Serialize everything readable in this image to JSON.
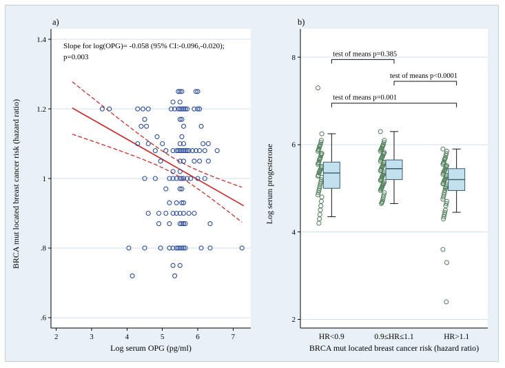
{
  "figure": {
    "background": "#e9f1f6",
    "plot_background": "#ffffff",
    "grid_color": "#cfe1ee",
    "axis_color": "#000000"
  },
  "chart_data": [
    {
      "type": "scatter",
      "panel_label": "a)",
      "annotation_line1": "Slope for log(OPG)= -0.058 (95% CI:-0.096,-0.020);",
      "annotation_line2": "p=0.003",
      "xlabel": "Log serum OPG (pg/ml)",
      "ylabel": "BRCA mut located breast cancer risk (hazard ratio)",
      "xlim": [
        1.85,
        7.5
      ],
      "ylim": [
        0.57,
        1.43
      ],
      "x_ticks": [
        2,
        3,
        4,
        5,
        6,
        7
      ],
      "y_ticks": [
        {
          "v": 0.6,
          "label": ".6"
        },
        {
          "v": 0.8,
          "label": ".8"
        },
        {
          "v": 1.0,
          "label": "1"
        },
        {
          "v": 1.2,
          "label": "1.2"
        },
        {
          "v": 1.4,
          "label": "1.4"
        }
      ],
      "point_color": "#2b4a9d",
      "fit_color": "#d42a2a",
      "fit": {
        "slope": -0.058,
        "intercept": 1.345,
        "x_start": 2.45,
        "x_end": 7.3,
        "ci_center": 5.4,
        "ci_base": 0.022,
        "ci_spread": 0.9
      },
      "bands": [
        {
          "y": 1.25,
          "x": [
            5.45,
            5.5,
            5.55,
            5.95,
            6.0
          ]
        },
        {
          "y": 1.22,
          "x": [
            5.3,
            5.5
          ]
        },
        {
          "y": 1.2,
          "x": [
            3.3,
            3.5,
            4.3,
            4.45,
            4.6,
            5.25,
            5.35,
            5.45,
            5.5,
            5.55,
            5.6,
            5.65,
            5.7,
            5.9,
            6.0,
            6.05
          ]
        },
        {
          "y": 1.17,
          "x": [
            4.5,
            5.5,
            5.55
          ]
        },
        {
          "y": 1.15,
          "x": [
            4.4,
            4.55,
            5.6,
            6.1
          ]
        },
        {
          "y": 1.12,
          "x": [
            4.85,
            5.55
          ]
        },
        {
          "y": 1.1,
          "x": [
            4.3,
            4.6,
            5.0,
            5.5,
            5.6,
            6.15,
            6.3
          ]
        },
        {
          "y": 1.08,
          "x": [
            4.8,
            5.1,
            5.3,
            5.4,
            5.45,
            5.5,
            5.55,
            5.6,
            5.65,
            5.7,
            5.75,
            5.85,
            5.95,
            6.05,
            6.2,
            6.55
          ]
        },
        {
          "y": 1.05,
          "x": [
            4.95,
            5.5,
            5.6,
            5.9,
            6.05,
            6.3
          ]
        },
        {
          "y": 1.02,
          "x": [
            5.3,
            5.5
          ]
        },
        {
          "y": 1.0,
          "x": [
            4.5,
            4.8,
            5.2,
            5.3,
            5.4,
            5.5,
            5.55,
            5.6,
            5.7,
            5.8,
            6.0,
            6.2
          ]
        },
        {
          "y": 0.97,
          "x": [
            5.1,
            5.5,
            5.55
          ]
        },
        {
          "y": 0.93,
          "x": [
            5.2,
            5.4,
            5.55,
            5.6
          ]
        },
        {
          "y": 0.9,
          "x": [
            4.6,
            4.9,
            5.1,
            5.3,
            5.4,
            5.5,
            5.6,
            5.75,
            5.9
          ]
        },
        {
          "y": 0.87,
          "x": [
            4.9,
            5.2,
            5.5,
            5.55,
            5.6,
            5.65,
            6.35
          ]
        },
        {
          "y": 0.8,
          "x": [
            4.05,
            4.5,
            4.95,
            5.2,
            5.3,
            5.4,
            5.45,
            5.5,
            5.55,
            5.6,
            5.65,
            6.1,
            6.35,
            7.25
          ]
        },
        {
          "y": 0.75,
          "x": [
            5.3,
            5.5
          ]
        },
        {
          "y": 0.72,
          "x": [
            4.15,
            5.35
          ]
        }
      ]
    },
    {
      "type": "box",
      "panel_label": "b)",
      "xlabel": "BRCA mut located breast cancer risk (hazard ratio)",
      "ylabel": "Log serum progesterone",
      "ylim": [
        1.8,
        8.65
      ],
      "y_ticks": [
        {
          "v": 2,
          "label": "2"
        },
        {
          "v": 4,
          "label": "4"
        },
        {
          "v": 6,
          "label": "6"
        },
        {
          "v": 8,
          "label": "8"
        }
      ],
      "box_fill": "#c3e0ee",
      "box_stroke": "#3a5a6a",
      "point_color": "#4e7d57",
      "groups": [
        {
          "label": "HR<0.9",
          "lo": 4.35,
          "q1": 5.0,
          "median": 5.35,
          "q3": 5.6,
          "hi": 6.25,
          "points": [
            7.3,
            6.25,
            6.1,
            6.05,
            6.0,
            5.98,
            5.95,
            5.9,
            5.88,
            5.85,
            5.8,
            5.78,
            5.75,
            5.7,
            5.68,
            5.65,
            5.6,
            5.58,
            5.55,
            5.5,
            5.48,
            5.45,
            5.42,
            5.4,
            5.38,
            5.35,
            5.3,
            5.28,
            5.25,
            5.2,
            5.15,
            5.1,
            5.05,
            5.0,
            4.95,
            4.9,
            4.85,
            4.8,
            4.7,
            4.6,
            4.5,
            4.4,
            4.3,
            4.2
          ]
        },
        {
          "label": "0.9≤HR≤1.1",
          "lo": 4.65,
          "q1": 5.2,
          "median": 5.45,
          "q3": 5.65,
          "hi": 6.3,
          "points": [
            6.3,
            6.1,
            6.05,
            6.0,
            5.98,
            5.95,
            5.92,
            5.9,
            5.88,
            5.85,
            5.82,
            5.8,
            5.78,
            5.75,
            5.72,
            5.7,
            5.68,
            5.65,
            5.62,
            5.6,
            5.58,
            5.55,
            5.52,
            5.5,
            5.48,
            5.45,
            5.42,
            5.4,
            5.38,
            5.35,
            5.32,
            5.3,
            5.28,
            5.25,
            5.22,
            5.2,
            5.18,
            5.15,
            5.12,
            5.1,
            5.08,
            5.05,
            5.02,
            5.0,
            4.98,
            4.95,
            4.9,
            4.85,
            4.8,
            4.75,
            4.7,
            4.68,
            4.65
          ]
        },
        {
          "label": "HR>1.1",
          "lo": 4.45,
          "q1": 4.95,
          "median": 5.2,
          "q3": 5.45,
          "hi": 5.9,
          "points": [
            5.9,
            5.85,
            5.8,
            5.75,
            5.7,
            5.68,
            5.65,
            5.6,
            5.58,
            5.55,
            5.52,
            5.5,
            5.48,
            5.45,
            5.42,
            5.4,
            5.38,
            5.35,
            5.32,
            5.3,
            5.28,
            5.25,
            5.22,
            5.2,
            5.18,
            5.15,
            5.12,
            5.1,
            5.08,
            5.05,
            5.02,
            5.0,
            4.95,
            4.9,
            4.85,
            4.8,
            4.75,
            4.7,
            4.65,
            4.6,
            4.5,
            4.45,
            4.4,
            4.35,
            4.3,
            3.6,
            3.3,
            2.4
          ]
        }
      ],
      "annotations": [
        {
          "label": "test of means p=0.385",
          "from": 0,
          "to": 1,
          "y": 7.95,
          "label_at": 0,
          "label_dx": 2
        },
        {
          "label": "test of means p<0.0001",
          "from": 1,
          "to": 2,
          "y": 7.45,
          "label_at": 1,
          "label_dx": -6
        },
        {
          "label": "test of means p=0.001",
          "from": 0,
          "to": 2,
          "y": 6.95,
          "label_at": 0,
          "label_dx": 2
        }
      ]
    }
  ]
}
